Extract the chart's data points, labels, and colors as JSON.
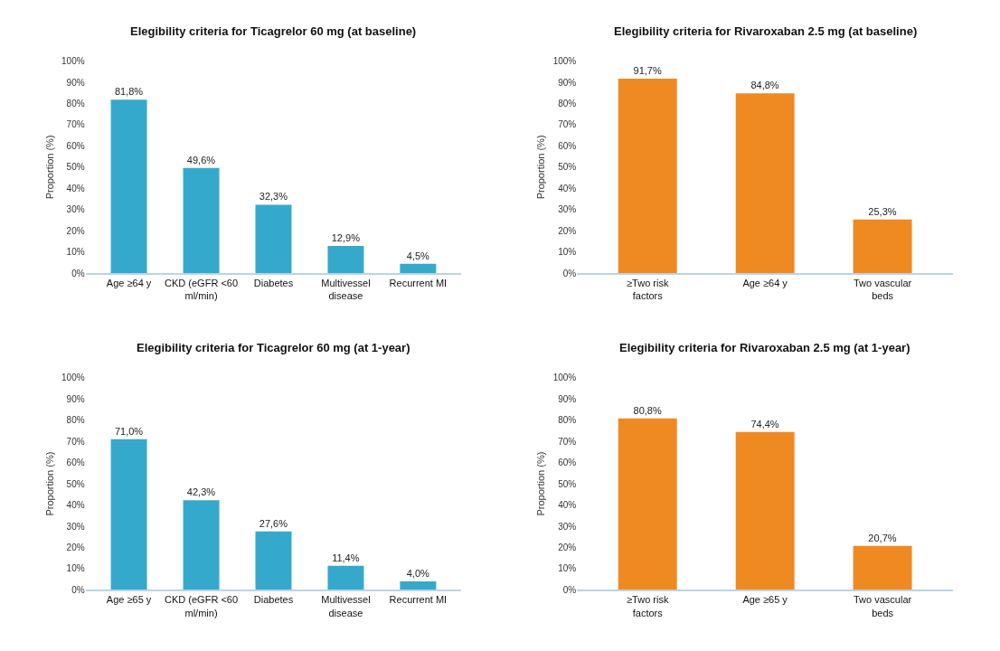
{
  "chart_data": [
    {
      "type": "bar",
      "title": "Elegibility criteria for Ticagrelor 60 mg (at baseline)",
      "ylabel": "Proportion (%)",
      "categories": [
        "Age ≥64 y",
        "CKD (eGFR <60 ml/min)",
        "Diabetes",
        "Multivessel disease",
        "Recurrent MI"
      ],
      "values": [
        81.8,
        49.6,
        32.3,
        12.9,
        4.5
      ],
      "value_labels": [
        "81,8%",
        "49,6%",
        "32,3%",
        "12,9%",
        "4,5%"
      ],
      "color": "#35a9cc",
      "ylim": [
        0,
        100
      ],
      "yticks": [
        {
          "value": 0,
          "label": "0%"
        },
        {
          "value": 10,
          "label": "10%"
        },
        {
          "value": 20,
          "label": "20%"
        },
        {
          "value": 30,
          "label": "30%"
        },
        {
          "value": 40,
          "label": "40%"
        },
        {
          "value": 50,
          "label": "50%"
        },
        {
          "value": 60,
          "label": "60%"
        },
        {
          "value": 70,
          "label": "70%"
        },
        {
          "value": 80,
          "label": "80%"
        },
        {
          "value": 90,
          "label": "90%"
        },
        {
          "value": 100,
          "label": "100%"
        }
      ]
    },
    {
      "type": "bar",
      "title": "Elegibility criteria for Rivaroxaban 2.5 mg (at baseline)",
      "ylabel": "Proportion (%)",
      "categories": [
        "≥Two risk factors",
        "Age ≥64 y",
        "Two vascular beds"
      ],
      "values": [
        91.7,
        84.8,
        25.3
      ],
      "value_labels": [
        "91,7%",
        "84,8%",
        "25,3%"
      ],
      "color": "#ef8a22",
      "ylim": [
        0,
        100
      ],
      "yticks": [
        {
          "value": 0,
          "label": "0%"
        },
        {
          "value": 10,
          "label": "10%"
        },
        {
          "value": 20,
          "label": "20%"
        },
        {
          "value": 30,
          "label": "30%"
        },
        {
          "value": 40,
          "label": "40%"
        },
        {
          "value": 50,
          "label": "50%"
        },
        {
          "value": 60,
          "label": "60%"
        },
        {
          "value": 70,
          "label": "70%"
        },
        {
          "value": 80,
          "label": "80%"
        },
        {
          "value": 90,
          "label": "90%"
        },
        {
          "value": 100,
          "label": "100%"
        }
      ]
    },
    {
      "type": "bar",
      "title": "Elegibility criteria for Ticagrelor 60 mg (at 1-year)",
      "ylabel": "Proportion (%)",
      "categories": [
        "Age ≥65 y",
        "CKD (eGFR <60 ml/min)",
        "Diabetes",
        "Multivessel disease",
        "Recurrent MI"
      ],
      "values": [
        71.0,
        42.3,
        27.6,
        11.4,
        4.0
      ],
      "value_labels": [
        "71,0%",
        "42,3%",
        "27,6%",
        "11,4%",
        "4,0%"
      ],
      "color": "#35a9cc",
      "ylim": [
        0,
        100
      ],
      "yticks": [
        {
          "value": 0,
          "label": "0%"
        },
        {
          "value": 10,
          "label": "10%"
        },
        {
          "value": 20,
          "label": "20%"
        },
        {
          "value": 30,
          "label": "30%"
        },
        {
          "value": 40,
          "label": "40%"
        },
        {
          "value": 50,
          "label": "50%"
        },
        {
          "value": 60,
          "label": "60%"
        },
        {
          "value": 70,
          "label": "70%"
        },
        {
          "value": 80,
          "label": "80%"
        },
        {
          "value": 90,
          "label": "90%"
        },
        {
          "value": 100,
          "label": "100%"
        }
      ]
    },
    {
      "type": "bar",
      "title": "Elegibility criteria for Rivaroxaban 2.5 mg (at 1-year)",
      "ylabel": "Proportion (%)",
      "categories": [
        "≥Two risk factors",
        "Age ≥65 y",
        "Two vascular beds"
      ],
      "values": [
        80.8,
        74.4,
        20.7
      ],
      "value_labels": [
        "80,8%",
        "74,4%",
        "20,7%"
      ],
      "color": "#ef8a22",
      "ylim": [
        0,
        100
      ],
      "yticks": [
        {
          "value": 0,
          "label": "0%"
        },
        {
          "value": 10,
          "label": "10%"
        },
        {
          "value": 20,
          "label": "20%"
        },
        {
          "value": 30,
          "label": "30%"
        },
        {
          "value": 40,
          "label": "40%"
        },
        {
          "value": 50,
          "label": "50%"
        },
        {
          "value": 60,
          "label": "60%"
        },
        {
          "value": 70,
          "label": "70%"
        },
        {
          "value": 80,
          "label": "80%"
        },
        {
          "value": 90,
          "label": "90%"
        },
        {
          "value": 100,
          "label": "100%"
        }
      ]
    }
  ]
}
